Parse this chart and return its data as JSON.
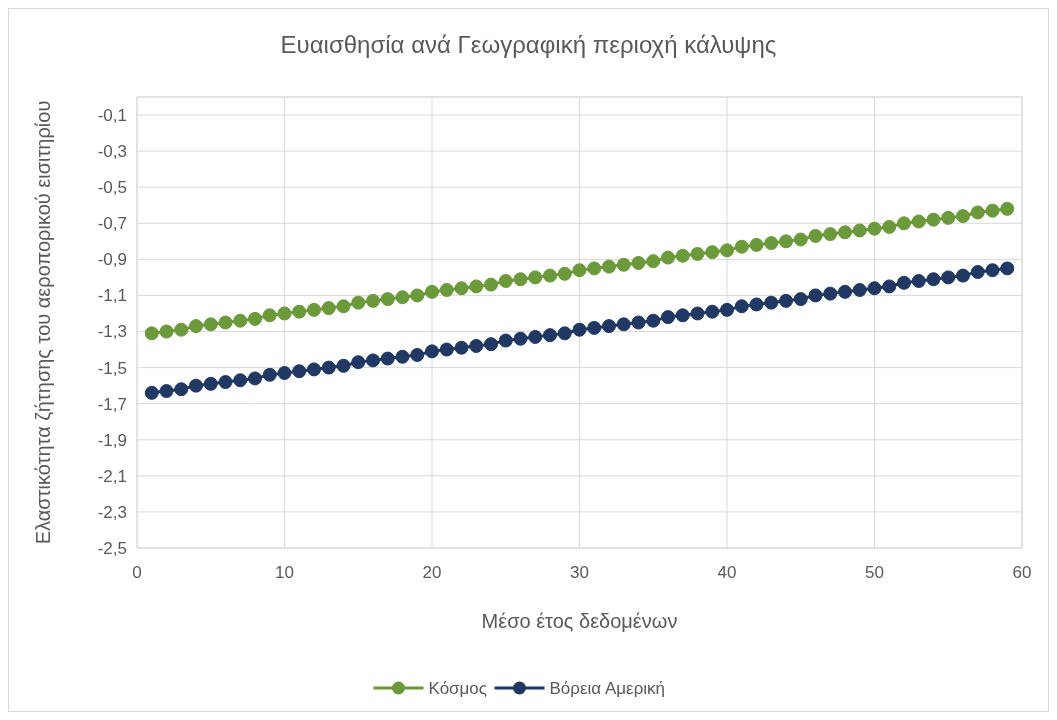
{
  "chart_data": {
    "type": "line",
    "title": "Ευαισθησία ανά Γεωγραφική περιοχή κάλυψης",
    "xlabel": "Μέσο έτος δεδομένων",
    "ylabel": "Ελαστικότητα ζήτησης του αεροπορικού εισιτηρίου",
    "x": [
      1,
      2,
      3,
      4,
      5,
      6,
      7,
      8,
      9,
      10,
      11,
      12,
      13,
      14,
      15,
      16,
      17,
      18,
      19,
      20,
      21,
      22,
      23,
      24,
      25,
      26,
      27,
      28,
      29,
      30,
      31,
      32,
      33,
      34,
      35,
      36,
      37,
      38,
      39,
      40,
      41,
      42,
      43,
      44,
      45,
      46,
      47,
      48,
      49,
      50,
      51,
      52,
      53,
      54,
      55,
      56,
      57,
      58,
      59
    ],
    "series": [
      {
        "name": "Κόσμος",
        "color": "#6a9a3a",
        "values": [
          -1.31,
          -1.3,
          -1.29,
          -1.27,
          -1.26,
          -1.25,
          -1.24,
          -1.23,
          -1.21,
          -1.2,
          -1.19,
          -1.18,
          -1.17,
          -1.16,
          -1.14,
          -1.13,
          -1.12,
          -1.11,
          -1.1,
          -1.08,
          -1.07,
          -1.06,
          -1.05,
          -1.04,
          -1.02,
          -1.01,
          -1.0,
          -0.99,
          -0.98,
          -0.96,
          -0.95,
          -0.94,
          -0.93,
          -0.92,
          -0.91,
          -0.89,
          -0.88,
          -0.87,
          -0.86,
          -0.85,
          -0.83,
          -0.82,
          -0.81,
          -0.8,
          -0.79,
          -0.77,
          -0.76,
          -0.75,
          -0.74,
          -0.73,
          -0.72,
          -0.7,
          -0.69,
          -0.68,
          -0.67,
          -0.66,
          -0.64,
          -0.63,
          -0.62
        ]
      },
      {
        "name": "Βόρεια Αμερική",
        "color": "#1f3864",
        "values": [
          -1.64,
          -1.63,
          -1.62,
          -1.6,
          -1.59,
          -1.58,
          -1.57,
          -1.56,
          -1.54,
          -1.53,
          -1.52,
          -1.51,
          -1.5,
          -1.49,
          -1.47,
          -1.46,
          -1.45,
          -1.44,
          -1.43,
          -1.41,
          -1.4,
          -1.39,
          -1.38,
          -1.37,
          -1.35,
          -1.34,
          -1.33,
          -1.32,
          -1.31,
          -1.29,
          -1.28,
          -1.27,
          -1.26,
          -1.25,
          -1.24,
          -1.22,
          -1.21,
          -1.2,
          -1.19,
          -1.18,
          -1.16,
          -1.15,
          -1.14,
          -1.13,
          -1.12,
          -1.1,
          -1.09,
          -1.08,
          -1.07,
          -1.06,
          -1.05,
          -1.03,
          -1.02,
          -1.01,
          -1.0,
          -0.99,
          -0.97,
          -0.96,
          -0.95
        ]
      }
    ],
    "xlim": [
      0,
      60
    ],
    "xticks": [
      0,
      10,
      20,
      30,
      40,
      50,
      60
    ],
    "ylim": [
      -2.5,
      0
    ],
    "yticks": [
      {
        "value": -2.5,
        "label": "-2,5"
      },
      {
        "value": -2.3,
        "label": "-2,3"
      },
      {
        "value": -2.1,
        "label": "-2,1"
      },
      {
        "value": -1.9,
        "label": "-1,9"
      },
      {
        "value": -1.7,
        "label": "-1,7"
      },
      {
        "value": -1.5,
        "label": "-1,5"
      },
      {
        "value": -1.3,
        "label": "-1,3"
      },
      {
        "value": -1.1,
        "label": "-1,1"
      },
      {
        "value": -0.9,
        "label": "-0,9"
      },
      {
        "value": -0.7,
        "label": "-0,7"
      },
      {
        "value": -0.5,
        "label": "-0,5"
      },
      {
        "value": -0.3,
        "label": "-0,3"
      },
      {
        "value": -0.1,
        "label": "-0,1"
      },
      {
        "value": 0,
        "label": null
      }
    ],
    "grid": true,
    "legend": "bottom",
    "marker": "circle",
    "line_style": "solid"
  }
}
